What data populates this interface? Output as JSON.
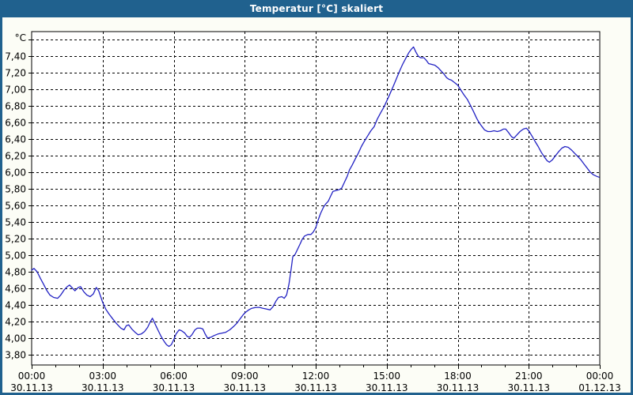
{
  "window": {
    "title": "Temperatur [°C] skaliert"
  },
  "colors": {
    "titlebar": "#20618e",
    "window_border": "#20618e",
    "content_background": "#fcfdf6",
    "plot_background": "#ffffff",
    "line": "#2222c3",
    "grid": "#000000",
    "text": "#000000"
  },
  "chart_data": {
    "type": "line",
    "title": "Temperatur [°C] skaliert",
    "ylabel": "°C",
    "xlabel": "",
    "grid": "dashed",
    "legend": "none",
    "ylim": [
      3.68,
      7.7
    ],
    "y_gridline_min": 3.8,
    "y_gridline_max": 7.6,
    "y_tick_step": 0.2,
    "y_tick_labels_top_to_bottom": [
      "7,40",
      "7,20",
      "7,00",
      "6,80",
      "6,60",
      "6,40",
      "6,20",
      "6,00",
      "5,80",
      "5,60",
      "5,40",
      "5,20",
      "5,00",
      "4,80",
      "4,60",
      "4,40",
      "4,20",
      "4,00",
      "3,80"
    ],
    "x_range_hours": [
      0,
      24
    ],
    "x_major_tick_hours": 3,
    "x_minor_tick_hours": 1,
    "x_ticks": [
      {
        "time": "00:00",
        "date": "30.11.13"
      },
      {
        "time": "03:00",
        "date": "30.11.13"
      },
      {
        "time": "06:00",
        "date": "30.11.13"
      },
      {
        "time": "09:00",
        "date": "30.11.13"
      },
      {
        "time": "12:00",
        "date": "30.11.13"
      },
      {
        "time": "15:00",
        "date": "30.11.13"
      },
      {
        "time": "18:00",
        "date": "30.11.13"
      },
      {
        "time": "21:00",
        "date": "30.11.13"
      },
      {
        "time": "00:00",
        "date": "01.12.13"
      }
    ],
    "series": [
      {
        "name": "Temperatur",
        "points": [
          [
            0,
            4.82
          ],
          [
            0.1,
            4.84
          ],
          [
            0.23,
            4.8
          ],
          [
            0.37,
            4.72
          ],
          [
            0.5,
            4.65
          ],
          [
            0.63,
            4.58
          ],
          [
            0.77,
            4.52
          ],
          [
            0.93,
            4.49
          ],
          [
            1.1,
            4.48
          ],
          [
            1.23,
            4.52
          ],
          [
            1.37,
            4.58
          ],
          [
            1.5,
            4.62
          ],
          [
            1.6,
            4.64
          ],
          [
            1.73,
            4.6
          ],
          [
            1.83,
            4.57
          ],
          [
            1.97,
            4.61
          ],
          [
            2.07,
            4.62
          ],
          [
            2.2,
            4.56
          ],
          [
            2.33,
            4.52
          ],
          [
            2.47,
            4.5
          ],
          [
            2.6,
            4.53
          ],
          [
            2.73,
            4.61
          ],
          [
            2.83,
            4.57
          ],
          [
            3,
            4.43
          ],
          [
            3.13,
            4.35
          ],
          [
            3.27,
            4.29
          ],
          [
            3.43,
            4.23
          ],
          [
            3.6,
            4.17
          ],
          [
            3.77,
            4.12
          ],
          [
            3.9,
            4.1
          ],
          [
            4,
            4.15
          ],
          [
            4.1,
            4.16
          ],
          [
            4.23,
            4.11
          ],
          [
            4.37,
            4.07
          ],
          [
            4.5,
            4.04
          ],
          [
            4.63,
            4.05
          ],
          [
            4.77,
            4.08
          ],
          [
            4.9,
            4.13
          ],
          [
            5,
            4.19
          ],
          [
            5.1,
            4.24
          ],
          [
            5.23,
            4.16
          ],
          [
            5.33,
            4.1
          ],
          [
            5.47,
            4.02
          ],
          [
            5.6,
            3.96
          ],
          [
            5.7,
            3.92
          ],
          [
            5.8,
            3.9
          ],
          [
            5.9,
            3.92
          ],
          [
            6,
            3.98
          ],
          [
            6.1,
            4.05
          ],
          [
            6.23,
            4.1
          ],
          [
            6.33,
            4.09
          ],
          [
            6.47,
            4.06
          ],
          [
            6.57,
            4.02
          ],
          [
            6.67,
            4.01
          ],
          [
            6.77,
            4.04
          ],
          [
            6.9,
            4.1
          ],
          [
            7,
            4.12
          ],
          [
            7.13,
            4.12
          ],
          [
            7.23,
            4.11
          ],
          [
            7.33,
            4.05
          ],
          [
            7.43,
            4.0
          ],
          [
            7.57,
            4.01
          ],
          [
            7.7,
            4.03
          ],
          [
            7.87,
            4.05
          ],
          [
            8.03,
            4.06
          ],
          [
            8.2,
            4.07
          ],
          [
            8.37,
            4.1
          ],
          [
            8.53,
            4.14
          ],
          [
            8.67,
            4.18
          ],
          [
            8.8,
            4.23
          ],
          [
            8.93,
            4.28
          ],
          [
            9.03,
            4.31
          ],
          [
            9.17,
            4.34
          ],
          [
            9.3,
            4.36
          ],
          [
            9.47,
            4.37
          ],
          [
            9.63,
            4.37
          ],
          [
            9.77,
            4.36
          ],
          [
            9.93,
            4.35
          ],
          [
            10.07,
            4.34
          ],
          [
            10.2,
            4.38
          ],
          [
            10.33,
            4.45
          ],
          [
            10.43,
            4.49
          ],
          [
            10.57,
            4.5
          ],
          [
            10.67,
            4.48
          ],
          [
            10.77,
            4.52
          ],
          [
            10.87,
            4.65
          ],
          [
            10.97,
            4.85
          ],
          [
            11.03,
            4.98
          ],
          [
            11.13,
            5.01
          ],
          [
            11.23,
            5.07
          ],
          [
            11.33,
            5.13
          ],
          [
            11.43,
            5.19
          ],
          [
            11.53,
            5.23
          ],
          [
            11.67,
            5.25
          ],
          [
            11.8,
            5.25
          ],
          [
            11.9,
            5.28
          ],
          [
            12,
            5.33
          ],
          [
            12.1,
            5.42
          ],
          [
            12.2,
            5.5
          ],
          [
            12.33,
            5.58
          ],
          [
            12.43,
            5.62
          ],
          [
            12.53,
            5.65
          ],
          [
            12.63,
            5.71
          ],
          [
            12.73,
            5.77
          ],
          [
            12.87,
            5.78
          ],
          [
            13,
            5.79
          ],
          [
            13.1,
            5.81
          ],
          [
            13.2,
            5.87
          ],
          [
            13.33,
            5.95
          ],
          [
            13.43,
            6.03
          ],
          [
            13.53,
            6.08
          ],
          [
            13.67,
            6.16
          ],
          [
            13.8,
            6.23
          ],
          [
            13.93,
            6.31
          ],
          [
            14.07,
            6.38
          ],
          [
            14.2,
            6.44
          ],
          [
            14.33,
            6.5
          ],
          [
            14.47,
            6.55
          ],
          [
            14.6,
            6.64
          ],
          [
            14.73,
            6.71
          ],
          [
            14.87,
            6.78
          ],
          [
            15,
            6.86
          ],
          [
            15.13,
            6.94
          ],
          [
            15.27,
            7.03
          ],
          [
            15.4,
            7.12
          ],
          [
            15.53,
            7.21
          ],
          [
            15.67,
            7.3
          ],
          [
            15.8,
            7.37
          ],
          [
            15.93,
            7.44
          ],
          [
            16.03,
            7.48
          ],
          [
            16.13,
            7.51
          ],
          [
            16.23,
            7.45
          ],
          [
            16.33,
            7.4
          ],
          [
            16.43,
            7.38
          ],
          [
            16.57,
            7.38
          ],
          [
            16.67,
            7.35
          ],
          [
            16.77,
            7.31
          ],
          [
            16.9,
            7.3
          ],
          [
            17.03,
            7.29
          ],
          [
            17.17,
            7.26
          ],
          [
            17.3,
            7.22
          ],
          [
            17.43,
            7.18
          ],
          [
            17.53,
            7.14
          ],
          [
            17.63,
            7.12
          ],
          [
            17.73,
            7.11
          ],
          [
            17.87,
            7.08
          ],
          [
            18,
            7.05
          ],
          [
            18.13,
            6.99
          ],
          [
            18.27,
            6.93
          ],
          [
            18.4,
            6.88
          ],
          [
            18.53,
            6.81
          ],
          [
            18.67,
            6.73
          ],
          [
            18.8,
            6.65
          ],
          [
            18.9,
            6.6
          ],
          [
            19,
            6.56
          ],
          [
            19.13,
            6.51
          ],
          [
            19.27,
            6.49
          ],
          [
            19.4,
            6.49
          ],
          [
            19.53,
            6.5
          ],
          [
            19.67,
            6.49
          ],
          [
            19.8,
            6.5
          ],
          [
            19.93,
            6.52
          ],
          [
            20.03,
            6.52
          ],
          [
            20.17,
            6.47
          ],
          [
            20.27,
            6.43
          ],
          [
            20.37,
            6.41
          ],
          [
            20.5,
            6.45
          ],
          [
            20.63,
            6.49
          ],
          [
            20.77,
            6.52
          ],
          [
            20.9,
            6.53
          ],
          [
            21,
            6.5
          ],
          [
            21.13,
            6.44
          ],
          [
            21.27,
            6.37
          ],
          [
            21.4,
            6.31
          ],
          [
            21.53,
            6.24
          ],
          [
            21.67,
            6.18
          ],
          [
            21.77,
            6.14
          ],
          [
            21.87,
            6.12
          ],
          [
            22,
            6.15
          ],
          [
            22.13,
            6.2
          ],
          [
            22.27,
            6.25
          ],
          [
            22.4,
            6.29
          ],
          [
            22.53,
            6.31
          ],
          [
            22.67,
            6.3
          ],
          [
            22.8,
            6.27
          ],
          [
            22.93,
            6.23
          ],
          [
            23.07,
            6.19
          ],
          [
            23.2,
            6.15
          ],
          [
            23.33,
            6.1
          ],
          [
            23.47,
            6.05
          ],
          [
            23.6,
            6.0
          ],
          [
            23.73,
            5.97
          ],
          [
            23.87,
            5.95
          ],
          [
            23.97,
            5.94
          ]
        ]
      }
    ]
  }
}
